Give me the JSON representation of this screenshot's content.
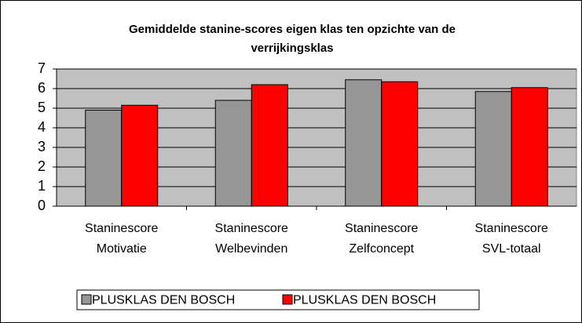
{
  "chart_data": {
    "type": "bar",
    "title": "Gemiddelde stanine-scores eigen klas ten opzichte van de verrijkingsklas",
    "categories": [
      "Staninescore Motivatie",
      "Staninescore Welbevinden",
      "Staninescore Zelfconcept",
      "Staninescore SVL-totaal"
    ],
    "series": [
      {
        "name": "PLUSKLAS DEN BOSCH",
        "color": "#969696",
        "values": [
          4.9,
          5.4,
          6.45,
          5.85
        ]
      },
      {
        "name": "PLUSKLAS DEN BOSCH",
        "color": "#ff0000",
        "values": [
          5.15,
          6.2,
          6.35,
          6.05
        ]
      }
    ],
    "ylim": [
      0,
      7
    ],
    "yticks": [
      0,
      1,
      2,
      3,
      4,
      5,
      6,
      7
    ],
    "grid": true,
    "legend": "bottom"
  }
}
